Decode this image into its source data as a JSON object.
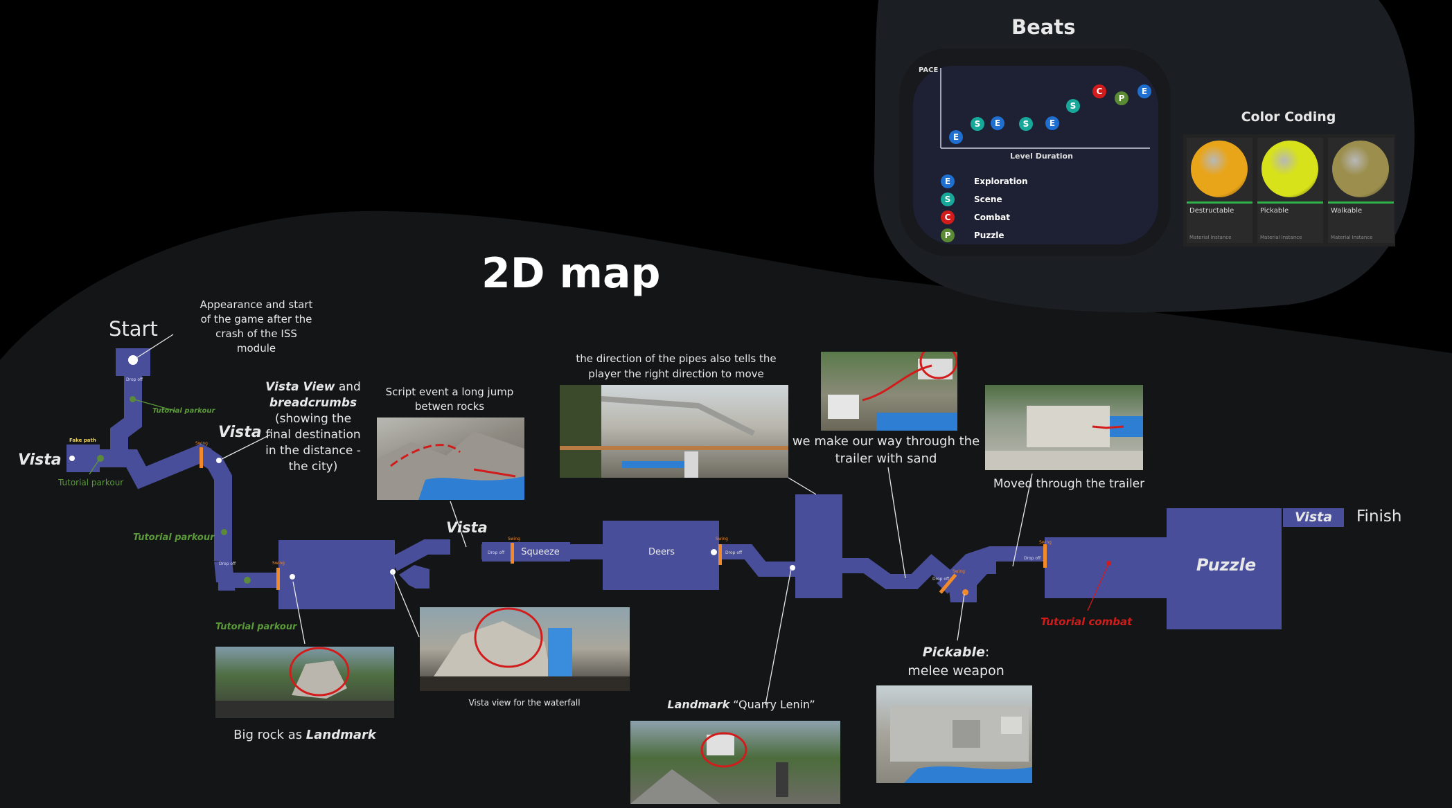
{
  "title": "2D map",
  "beats": {
    "title": "Beats",
    "y_axis": "PACE",
    "x_axis": "Level Duration",
    "sequence": [
      "E",
      "S",
      "E",
      "S",
      "E",
      "S",
      "C",
      "P",
      "E"
    ],
    "legend": [
      {
        "letter": "E",
        "label": "Exploration",
        "color": "#1f6fd0"
      },
      {
        "letter": "S",
        "label": "Scene",
        "color": "#17a89a"
      },
      {
        "letter": "C",
        "label": "Combat",
        "color": "#d21c1c"
      },
      {
        "letter": "P",
        "label": "Puzzle",
        "color": "#5a8a33"
      }
    ]
  },
  "color_coding": {
    "title": "Color Coding",
    "items": [
      {
        "label": "Destructable",
        "sub": "Material Instance",
        "color": "#e9a51a"
      },
      {
        "label": "Pickable",
        "sub": "Material Instance",
        "color": "#d7e21a"
      },
      {
        "label": "Walkable",
        "sub": "Material Instance",
        "color": "#9c8f4d"
      }
    ]
  },
  "labels": {
    "start": "Start",
    "finish": "Finish",
    "vista": "Vista",
    "puzzle": "Puzzle",
    "squeeze": "Squeeze",
    "deers": "Deers",
    "fake_path": "Fake path",
    "drop_off": "Drop off",
    "swing": "Swing"
  },
  "notes": {
    "appearance": "Appearance and start of the game after the crash of the ISS module",
    "vista_view_bold": "Vista View",
    "vista_view_and": " and ",
    "breadcrumbs_bold": "breadcrumbs",
    "vista_view_rest": "(showing the final destination in the distance - the city)",
    "script_event": "Script event a long jump betwen rocks",
    "pipes": "the direction of the pipes also tells the player the right direction to move",
    "trailer_sand": "we make our way through the trailer with sand",
    "moved_trailer": "Moved through the trailer",
    "big_rock_prefix": "Big rock as ",
    "big_rock_bold": "Landmark",
    "vista_waterfall": "Vista view for the waterfall",
    "landmark_bold": "Landmark",
    "landmark_rest": " “Quarry Lenin”",
    "pickable_bold": "Pickable",
    "pickable_colon": ":",
    "melee": "melee weapon",
    "tutorial_parkour": "Tutorial parkour",
    "tutorial_combat": "Tutorial combat"
  }
}
